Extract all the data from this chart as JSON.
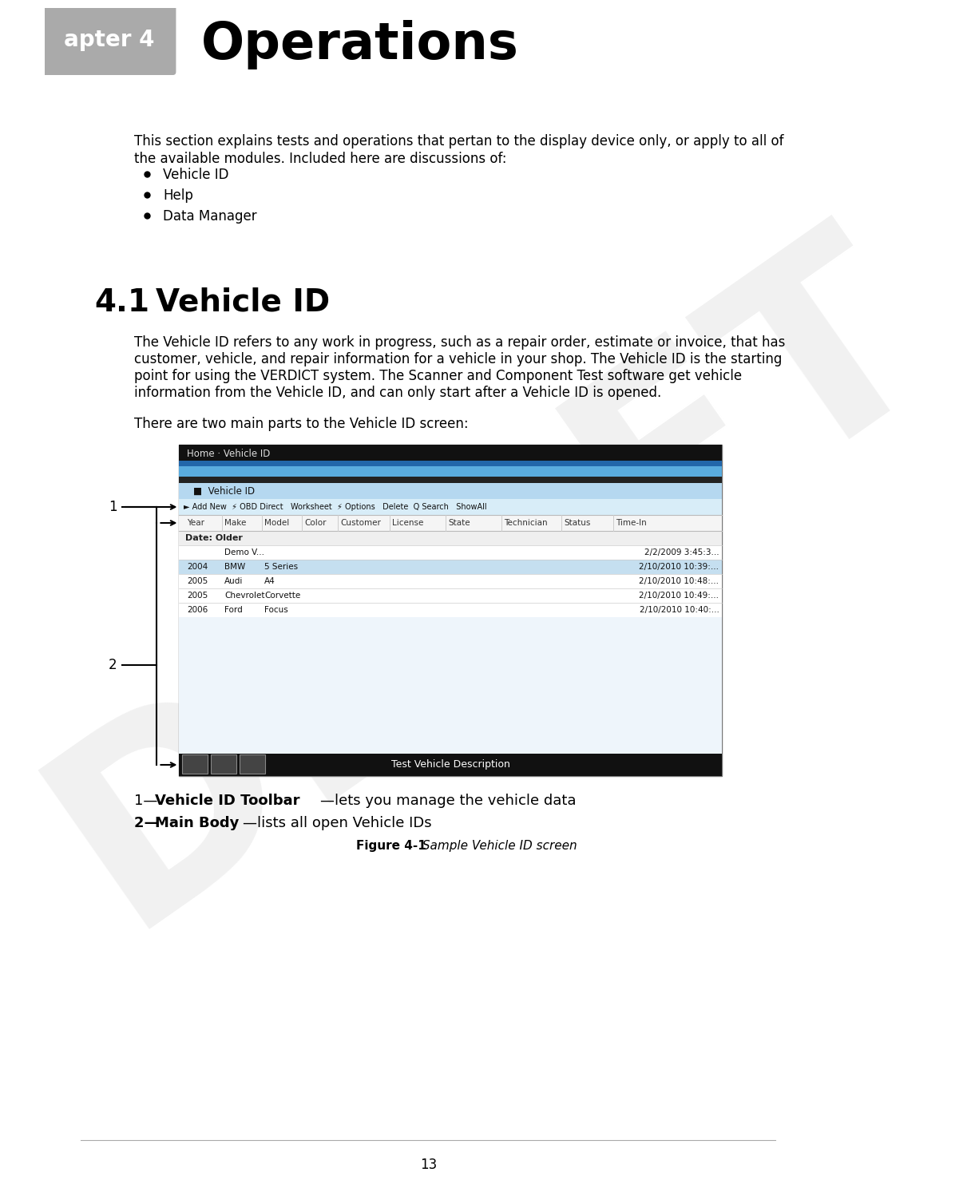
{
  "bg_color": "#ffffff",
  "header_tab_color": "#aaaaaa",
  "header_tab_text": "apter 4",
  "header_tab_text_color": "#ffffff",
  "header_title": "Operations",
  "header_title_color": "#000000",
  "draft_watermark": "DRAFT",
  "draft_color": "#cccccc",
  "intro_text_line1": "This section explains tests and operations that pertan to the display device only, or apply to all of",
  "intro_text_line2": "the available modules. Included here are discussions of:",
  "bullet_items": [
    "Vehicle ID",
    "Help",
    "Data Manager"
  ],
  "section_number": "4.1",
  "section_title": "  Vehicle ID",
  "body_lines": [
    "The Vehicle ID refers to any work in progress, such as a repair order, estimate or invoice, that has",
    "customer, vehicle, and repair information for a vehicle in your shop. The Vehicle ID is the starting",
    "point for using the VERDICT system. The Scanner and Component Test software get vehicle",
    "information from the Vehicle ID, and can only start after a Vehicle ID is opened."
  ],
  "section_body2": "There are two main parts to the Vehicle ID screen:",
  "annotation_1_prefix": "1— ",
  "annotation_1_bold": "Vehicle ID Toolbar",
  "annotation_1_suffix": "—lets you manage the vehicle data",
  "annotation_2_prefix": "2— ",
  "annotation_2_bold": "Main Body",
  "annotation_2_suffix": "—lists all open Vehicle IDs",
  "caption_bold": "Figure 4-1",
  "caption_italic": " Sample Vehicle ID screen",
  "page_number": "13",
  "footer_line_color": "#aaaaaa",
  "ss_title_bar_text": "Home · Vehicle ID",
  "ss_vh_text": "Vehicle ID",
  "ss_toolbar_text": "► Add New  ⚡ OBD Direct   Worksheet  ⚡ Options   Delete  Q Search   ShowAll",
  "ss_cols": [
    "Year",
    "Make",
    "Model",
    "Color",
    "Customer",
    "License",
    "State",
    "Technician",
    "Status",
    "Time-In"
  ],
  "ss_date_older": "Date: Older",
  "ss_rows": [
    [
      "",
      "Demo V...",
      "",
      "",
      "",
      "",
      "",
      "",
      "",
      "2/2/2009 3:45:3..."
    ],
    [
      "2004",
      "BMW",
      "5 Series",
      "",
      "",
      "",
      "",
      "",
      "",
      "2/10/2010 10:39:..."
    ],
    [
      "2005",
      "Audi",
      "A4",
      "",
      "",
      "",
      "",
      "",
      "",
      "2/10/2010 10:48:..."
    ],
    [
      "2005",
      "Chevrolet",
      "Corvette",
      "",
      "",
      "",
      "",
      "",
      "",
      "2/10/2010 10:49:..."
    ],
    [
      "2006",
      "Ford",
      "Focus",
      "",
      "",
      "",
      "",
      "",
      "",
      "2/10/2010 10:40:..."
    ]
  ],
  "ss_bottom_text": "Test Vehicle Description"
}
